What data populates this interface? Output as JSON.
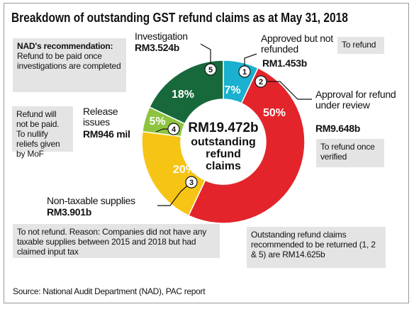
{
  "chart_data": {
    "type": "pie",
    "donut": true,
    "title": "Breakdown of outstanding GST refund claims as at May 31, 2018",
    "categories": [
      "Approved but not refunded",
      "Approval for refund under review",
      "Non-taxable supplies",
      "Release issues",
      "Investigation"
    ],
    "values": [
      7,
      50,
      20,
      5,
      18
    ],
    "value_labels": [
      "7%",
      "50%",
      "20%",
      "5%",
      "18%"
    ],
    "amounts": [
      "RM1.453b",
      "RM9.648b",
      "RM3.901b",
      "RM946 mil",
      "RM3.524b"
    ],
    "segment_numbers": [
      "1",
      "2",
      "3",
      "4",
      "5"
    ],
    "colors": [
      "#1ab0cf",
      "#e3242b",
      "#f6c414",
      "#8cc43f",
      "#17683a"
    ],
    "center_label": "RM19.472b",
    "center_text": "outstanding refund claims",
    "recommendation_heading": "NAD's recommendation:",
    "recommendation_text": "Refund to be paid once investigations are completed",
    "annotations": [
      "To refund",
      "To refund once verified",
      "Refund will not be paid. To nullify reliefs given by MoF",
      "To not refund. Reason: Companies did not have any taxable supplies between 2015 and 2018 but had claimed input tax",
      "Outstanding refund claims recommended to be returned (1, 2 & 5) are RM14.625b"
    ],
    "source": "Source: National Audit Department (NAD), PAC report"
  }
}
